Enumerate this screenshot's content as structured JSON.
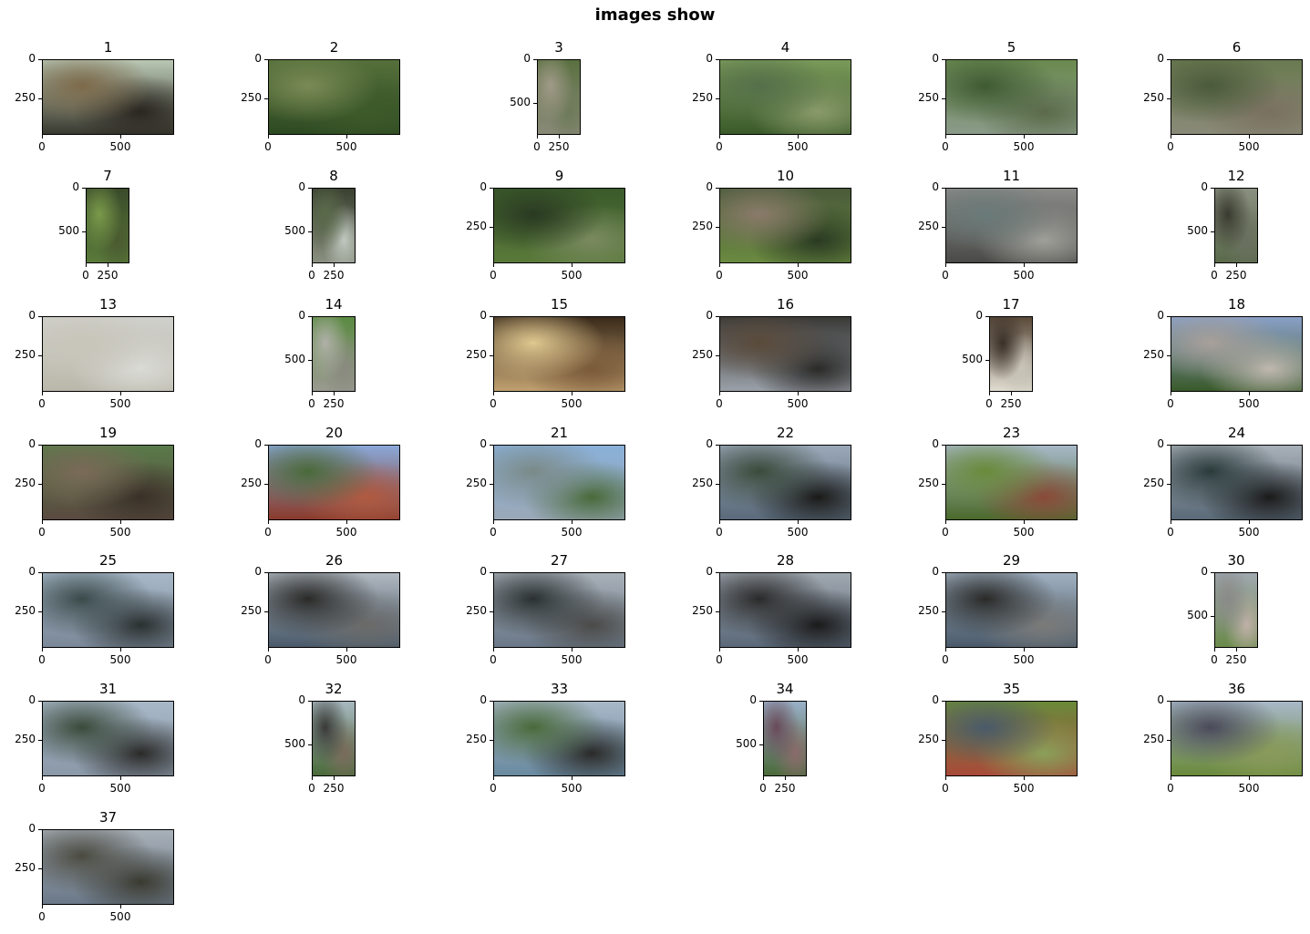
{
  "figure": {
    "title": "images show"
  },
  "panels": [
    {
      "label": "1",
      "shape": "landscape",
      "ticks_x": [
        "0",
        "500"
      ],
      "ticks_y": [
        "0",
        "250"
      ],
      "colors": [
        "#b9c7b4",
        "#3a3a30",
        "#7d6a4a",
        "#2a2620"
      ]
    },
    {
      "label": "2",
      "shape": "landscape",
      "ticks_x": [
        "0",
        "500"
      ],
      "ticks_y": [
        "0",
        "250"
      ],
      "colors": [
        "#55703a",
        "#2e4a22",
        "#7a8a55",
        "#3d5a2a"
      ]
    },
    {
      "label": "3",
      "shape": "portrait",
      "ticks_x": [
        "0",
        "250"
      ],
      "ticks_y": [
        "0",
        "500"
      ],
      "colors": [
        "#5a7040",
        "#8a8a78",
        "#a09a88",
        "#6e7a5a"
      ]
    },
    {
      "label": "4",
      "shape": "landscape",
      "ticks_x": [
        "0",
        "500"
      ],
      "ticks_y": [
        "0",
        "250"
      ],
      "colors": [
        "#7a9a5a",
        "#3a5a2a",
        "#55704a",
        "#8a9a6a"
      ]
    },
    {
      "label": "5",
      "shape": "landscape",
      "ticks_x": [
        "0",
        "500"
      ],
      "ticks_y": [
        "0",
        "250"
      ],
      "colors": [
        "#6a8a50",
        "#8a9a88",
        "#3e5a32",
        "#5a6a4a"
      ]
    },
    {
      "label": "6",
      "shape": "landscape",
      "ticks_x": [
        "0",
        "500"
      ],
      "ticks_y": [
        "0",
        "250"
      ],
      "colors": [
        "#6a7a50",
        "#8a8a78",
        "#4a5a3a",
        "#7a7060"
      ]
    },
    {
      "label": "7",
      "shape": "portrait",
      "ticks_x": [
        "0",
        "250"
      ],
      "ticks_y": [
        "0",
        "500"
      ],
      "colors": [
        "#3a4a2a",
        "#5a7a3a",
        "#7a9a4a",
        "#4a5a30"
      ]
    },
    {
      "label": "8",
      "shape": "portrait",
      "ticks_x": [
        "0",
        "250"
      ],
      "ticks_y": [
        "0",
        "500"
      ],
      "colors": [
        "#3a4030",
        "#8a9080",
        "#5a6a4a",
        "#c0c8c0"
      ]
    },
    {
      "label": "9",
      "shape": "landscape",
      "ticks_x": [
        "0",
        "500"
      ],
      "ticks_y": [
        "0",
        "250"
      ],
      "colors": [
        "#3a5a2a",
        "#5a7a3a",
        "#2a3a22",
        "#7a8a60"
      ]
    },
    {
      "label": "10",
      "shape": "landscape",
      "ticks_x": [
        "0",
        "500"
      ],
      "ticks_y": [
        "0",
        "250"
      ],
      "colors": [
        "#4a5a3a",
        "#6a8a40",
        "#8a7a6a",
        "#2a3a22"
      ]
    },
    {
      "label": "11",
      "shape": "landscape",
      "ticks_x": [
        "0",
        "500"
      ],
      "ticks_y": [
        "0",
        "250"
      ],
      "colors": [
        "#8a8a88",
        "#4a4a48",
        "#6a7a78",
        "#a0a09a"
      ]
    },
    {
      "label": "12",
      "shape": "portrait",
      "ticks_x": [
        "0",
        "250"
      ],
      "ticks_y": [
        "0",
        "500"
      ],
      "colors": [
        "#8a9080",
        "#5a6a4a",
        "#3a3a30",
        "#6a7060"
      ]
    },
    {
      "label": "13",
      "shape": "landscape",
      "ticks_x": [
        "0",
        "500"
      ],
      "ticks_y": [
        "0",
        "250"
      ],
      "colors": [
        "#d0d0cc",
        "#bab8aa",
        "#c8c6ba",
        "#dadad6"
      ]
    },
    {
      "label": "14",
      "shape": "portrait",
      "ticks_x": [
        "0",
        "250"
      ],
      "ticks_y": [
        "0",
        "500"
      ],
      "colors": [
        "#5a8a40",
        "#9a9a90",
        "#b0b0a8",
        "#8a8a80"
      ]
    },
    {
      "label": "15",
      "shape": "landscape",
      "ticks_x": [
        "0",
        "500"
      ],
      "ticks_y": [
        "0",
        "250"
      ],
      "colors": [
        "#3a2a1a",
        "#c0a070",
        "#e0c890",
        "#7a5a3a"
      ]
    },
    {
      "label": "16",
      "shape": "landscape",
      "ticks_x": [
        "0",
        "500"
      ],
      "ticks_y": [
        "0",
        "250"
      ],
      "colors": [
        "#3a3a38",
        "#9aa0a8",
        "#5a4a3a",
        "#2a2a28"
      ]
    },
    {
      "label": "17",
      "shape": "portrait",
      "ticks_x": [
        "0",
        "250"
      ],
      "ticks_y": [
        "0",
        "500"
      ],
      "colors": [
        "#5a4a3a",
        "#e0dcd0",
        "#3a3028",
        "#c8c4b8"
      ]
    },
    {
      "label": "18",
      "shape": "landscape",
      "ticks_x": [
        "0",
        "500"
      ],
      "ticks_y": [
        "0",
        "250"
      ],
      "colors": [
        "#8aa0c8",
        "#3a5a2a",
        "#a8a09a",
        "#c0b8b0"
      ]
    },
    {
      "label": "19",
      "shape": "landscape",
      "ticks_x": [
        "0",
        "500"
      ],
      "ticks_y": [
        "0",
        "250"
      ],
      "colors": [
        "#5a7a4a",
        "#5a4a40",
        "#7a6a58",
        "#3a3028"
      ]
    },
    {
      "label": "20",
      "shape": "landscape",
      "ticks_x": [
        "0",
        "500"
      ],
      "ticks_y": [
        "0",
        "250"
      ],
      "colors": [
        "#8aa8d8",
        "#8a3a2a",
        "#4a6a3a",
        "#b05a40"
      ]
    },
    {
      "label": "21",
      "shape": "landscape",
      "ticks_x": [
        "0",
        "500"
      ],
      "ticks_y": [
        "0",
        "250"
      ],
      "colors": [
        "#8ab0d8",
        "#9aa8b8",
        "#7a8a88",
        "#4a6a3a"
      ]
    },
    {
      "label": "22",
      "shape": "landscape",
      "ticks_x": [
        "0",
        "500"
      ],
      "ticks_y": [
        "0",
        "250"
      ],
      "colors": [
        "#9aa8b8",
        "#5a6a7a",
        "#3a4a3a",
        "#1a1a18"
      ]
    },
    {
      "label": "23",
      "shape": "landscape",
      "ticks_x": [
        "0",
        "500"
      ],
      "ticks_y": [
        "0",
        "250"
      ],
      "colors": [
        "#a8b8c8",
        "#4a6a2a",
        "#6a8a3a",
        "#8a4a3a"
      ]
    },
    {
      "label": "24",
      "shape": "landscape",
      "ticks_x": [
        "0",
        "500"
      ],
      "ticks_y": [
        "0",
        "250"
      ],
      "colors": [
        "#a8b0b8",
        "#5a6a78",
        "#2a3a3a",
        "#1a1a1a"
      ]
    },
    {
      "label": "25",
      "shape": "landscape",
      "ticks_x": [
        "0",
        "500"
      ],
      "ticks_y": [
        "0",
        "250"
      ],
      "colors": [
        "#a8b8c8",
        "#7a8898",
        "#3a4a4a",
        "#2a3030"
      ]
    },
    {
      "label": "26",
      "shape": "landscape",
      "ticks_x": [
        "0",
        "500"
      ],
      "ticks_y": [
        "0",
        "250"
      ],
      "colors": [
        "#b0b8c0",
        "#4a5a6a",
        "#2a2a28",
        "#6a6a68"
      ]
    },
    {
      "label": "27",
      "shape": "landscape",
      "ticks_x": [
        "0",
        "500"
      ],
      "ticks_y": [
        "0",
        "250"
      ],
      "colors": [
        "#a8b0b8",
        "#6a7888",
        "#2a3030",
        "#4a4a48"
      ]
    },
    {
      "label": "28",
      "shape": "landscape",
      "ticks_x": [
        "0",
        "500"
      ],
      "ticks_y": [
        "0",
        "250"
      ],
      "colors": [
        "#a0a8b0",
        "#5a6878",
        "#2a2a2a",
        "#1a1a1a"
      ]
    },
    {
      "label": "29",
      "shape": "landscape",
      "ticks_x": [
        "0",
        "500"
      ],
      "ticks_y": [
        "0",
        "250"
      ],
      "colors": [
        "#a0b0c0",
        "#4a5a6a",
        "#2a2a28",
        "#7a7a78"
      ]
    },
    {
      "label": "30",
      "shape": "portrait",
      "ticks_x": [
        "0",
        "250"
      ],
      "ticks_y": [
        "0",
        "500"
      ],
      "colors": [
        "#a0a8b0",
        "#6a8a4a",
        "#8a8a88",
        "#c0b0a8"
      ]
    },
    {
      "label": "31",
      "shape": "landscape",
      "ticks_x": [
        "0",
        "500"
      ],
      "ticks_y": [
        "0",
        "250"
      ],
      "colors": [
        "#a8b8c8",
        "#8a98a8",
        "#3a4a3a",
        "#2a2a28"
      ]
    },
    {
      "label": "32",
      "shape": "portrait",
      "ticks_x": [
        "0",
        "250"
      ],
      "ticks_y": [
        "0",
        "500"
      ],
      "colors": [
        "#a8b8c0",
        "#4a6a3a",
        "#3a3a38",
        "#7a6a5a"
      ]
    },
    {
      "label": "33",
      "shape": "landscape",
      "ticks_x": [
        "0",
        "500"
      ],
      "ticks_y": [
        "0",
        "250"
      ],
      "colors": [
        "#a8b8c8",
        "#6a8aa0",
        "#4a6a3a",
        "#2a2a28"
      ]
    },
    {
      "label": "34",
      "shape": "portrait",
      "ticks_x": [
        "0",
        "250"
      ],
      "ticks_y": [
        "0",
        "500"
      ],
      "colors": [
        "#9ab0c8",
        "#4a6a3a",
        "#6a4a5a",
        "#8a6a6a"
      ]
    },
    {
      "label": "35",
      "shape": "landscape",
      "ticks_x": [
        "0",
        "500"
      ],
      "ticks_y": [
        "0",
        "250"
      ],
      "colors": [
        "#6a8a3a",
        "#a84a3a",
        "#4a5a6a",
        "#8aa05a"
      ]
    },
    {
      "label": "36",
      "shape": "landscape",
      "ticks_x": [
        "0",
        "500"
      ],
      "ticks_y": [
        "0",
        "250"
      ],
      "colors": [
        "#a8b8c8",
        "#6a8a3a",
        "#4a4a5a",
        "#8a9a5a"
      ]
    },
    {
      "label": "37",
      "shape": "landscape",
      "ticks_x": [
        "0",
        "500"
      ],
      "ticks_y": [
        "0",
        "250"
      ],
      "colors": [
        "#a8b0b8",
        "#6a7888",
        "#4a4a40",
        "#3a3a30"
      ]
    }
  ]
}
